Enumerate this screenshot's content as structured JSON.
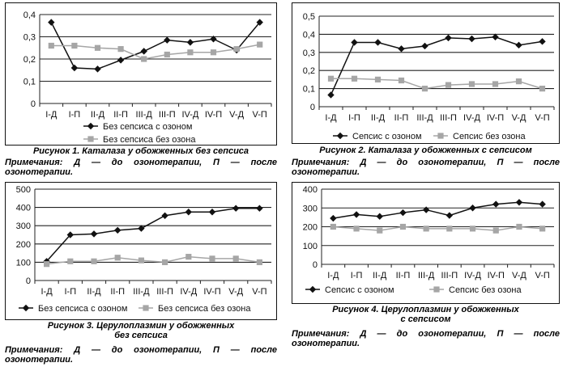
{
  "series_style": {
    "ozone": {
      "color": "#111111",
      "marker": "diamond"
    },
    "no_ozone": {
      "color": "#a6a6a6",
      "marker": "square"
    }
  },
  "chart_data": [
    {
      "type": "line",
      "categories": [
        "I-Д",
        "I-П",
        "II-Д",
        "II-П",
        "III-Д",
        "III-П",
        "IV-Д",
        "IV-П",
        "V-Д",
        "V-П"
      ],
      "ylim": [
        0,
        0.4
      ],
      "yticks": [
        "0",
        "0,1",
        "0,2",
        "0,3",
        "0,4"
      ],
      "ytick_values": [
        0,
        0.1,
        0.2,
        0.3,
        0.4
      ],
      "grid": true,
      "legend_position": "bottom",
      "legend_layout": "vertical",
      "series": [
        {
          "name": "Без сепсиса с озоном",
          "style": "ozone",
          "values": [
            0.365,
            0.16,
            0.155,
            0.195,
            0.235,
            0.285,
            0.275,
            0.29,
            0.24,
            0.365
          ]
        },
        {
          "name": "Без сепсиса без озона",
          "style": "no_ozone",
          "values": [
            0.26,
            0.26,
            0.25,
            0.245,
            0.2,
            0.22,
            0.23,
            0.23,
            0.245,
            0.265
          ]
        }
      ]
    },
    {
      "type": "line",
      "categories": [
        "I-Д",
        "I-П",
        "II-Д",
        "II-П",
        "III-Д",
        "III-П",
        "IV-Д",
        "IV-П",
        "V-Д",
        "V-П"
      ],
      "ylim": [
        0,
        0.5
      ],
      "yticks": [
        "0",
        "0,1",
        "0,2",
        "0,3",
        "0,4",
        "0,5"
      ],
      "ytick_values": [
        0,
        0.1,
        0.2,
        0.3,
        0.4,
        0.5
      ],
      "grid": true,
      "legend_position": "bottom",
      "legend_layout": "horizontal",
      "series": [
        {
          "name": "Сепсис с озоном",
          "style": "ozone",
          "values": [
            0.065,
            0.355,
            0.355,
            0.32,
            0.335,
            0.38,
            0.375,
            0.385,
            0.34,
            0.36
          ]
        },
        {
          "name": "Сепсис без озона",
          "style": "no_ozone",
          "values": [
            0.155,
            0.155,
            0.15,
            0.145,
            0.1,
            0.12,
            0.125,
            0.125,
            0.14,
            0.1
          ]
        }
      ]
    },
    {
      "type": "line",
      "categories": [
        "I-Д",
        "I-П",
        "II-Д",
        "II-П",
        "III-Д",
        "III-П",
        "IV-Д",
        "IV-П",
        "V-Д",
        "V-П"
      ],
      "ylim": [
        0,
        500
      ],
      "yticks": [
        "0",
        "100",
        "200",
        "300",
        "400",
        "500"
      ],
      "ytick_values": [
        0,
        100,
        200,
        300,
        400,
        500
      ],
      "grid": true,
      "legend_position": "bottom",
      "legend_layout": "horizontal",
      "series": [
        {
          "name": "Без сепсиса с озоном",
          "style": "ozone",
          "values": [
            105,
            250,
            255,
            275,
            285,
            355,
            375,
            375,
            395,
            395
          ]
        },
        {
          "name": "Без сепсиса без озона",
          "style": "no_ozone",
          "values": [
            90,
            105,
            105,
            125,
            110,
            100,
            130,
            120,
            120,
            100
          ]
        }
      ]
    },
    {
      "type": "line",
      "categories": [
        "I-Д",
        "I-П",
        "II-Д",
        "II-П",
        "III-Д",
        "III-П",
        "IV-Д",
        "IV-П",
        "V-Д",
        "V-П"
      ],
      "ylim": [
        0,
        400
      ],
      "yticks": [
        "0",
        "100",
        "200",
        "300",
        "400"
      ],
      "ytick_values": [
        0,
        100,
        200,
        300,
        400
      ],
      "grid": true,
      "legend_position": "bottom",
      "legend_layout": "horizontal",
      "series": [
        {
          "name": "Сепсис с озоном",
          "style": "ozone",
          "values": [
            245,
            265,
            255,
            275,
            290,
            260,
            300,
            320,
            330,
            320
          ]
        },
        {
          "name": "Сепсис без озона",
          "style": "no_ozone",
          "values": [
            200,
            190,
            180,
            200,
            190,
            190,
            190,
            180,
            200,
            190
          ]
        }
      ]
    }
  ],
  "captions": [
    {
      "figure": "Рисунок 1. Каталаза у обожженных без сепсиса",
      "note": "Примечания: Д — до озонотерапии, П — после озонотерапии."
    },
    {
      "figure": "Рисунок 2. Каталаза у обожженных с сепсисом",
      "note": "Примечания: Д — до озонотерапии, П — после озонотерапии."
    },
    {
      "figure": "Рисунок 3. Церулоплазмин у обожженных\nбез сепсиса",
      "note": "Примечания: Д — до озонотерапии, П — после озонотерапии."
    },
    {
      "figure": "Рисунок 4. Церулоплазмин у обожженных\nс сепсисом",
      "note": "Примечания: Д — до озонотерапии, П — после озонотерапии."
    }
  ]
}
